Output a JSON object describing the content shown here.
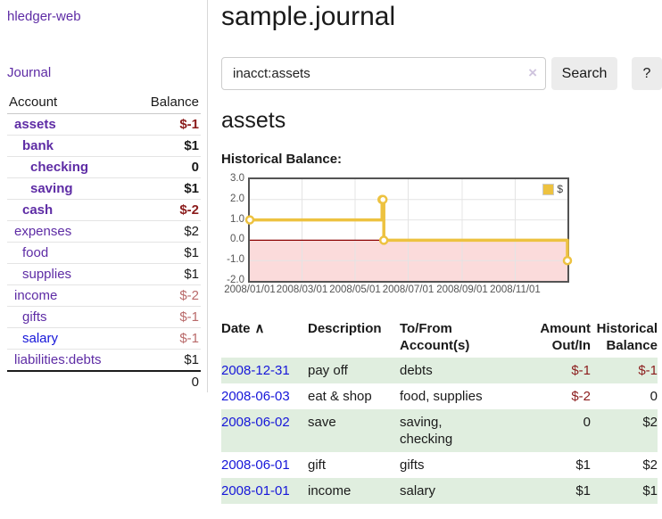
{
  "colors": {
    "link-purple": "#5e2ca5",
    "link-blue": "#1616d9",
    "neg-dark": "#8b1c1c",
    "neg-light": "#b96a6a",
    "row-green": "#e0eedf",
    "chart-gold": "#edc240",
    "chart-pink": "#fbdbdb",
    "chart-zero": "#8b0000",
    "chart-border": "#545454",
    "grid": "#e4e4e4"
  },
  "app": {
    "title": "hledger-web"
  },
  "sidebar": {
    "journal_link": "Journal",
    "account_header": "Account",
    "balance_header": "Balance",
    "rows": [
      {
        "name": "assets",
        "balance": "$-1"
      },
      {
        "name": "bank",
        "balance": "$1"
      },
      {
        "name": "checking",
        "balance": "0"
      },
      {
        "name": "saving",
        "balance": "$1"
      },
      {
        "name": "cash",
        "balance": "$-2"
      },
      {
        "name": "expenses",
        "balance": "$2"
      },
      {
        "name": "food",
        "balance": "$1"
      },
      {
        "name": "supplies",
        "balance": "$1"
      },
      {
        "name": "income",
        "balance": "$-2"
      },
      {
        "name": "gifts",
        "balance": "$-1"
      },
      {
        "name": "salary",
        "balance": "$-1"
      },
      {
        "name": "liabilities:debts",
        "balance": "$1"
      }
    ],
    "total": "0"
  },
  "header": {
    "title": "sample.journal"
  },
  "search": {
    "value": "inacct:assets",
    "clear_icon": "×",
    "button_label": "Search",
    "help_label": "?"
  },
  "account_page": {
    "title": "assets",
    "chart_label": "Historical Balance:"
  },
  "chart_data": {
    "type": "line",
    "title": "Historical Balance",
    "steps": true,
    "series": [
      {
        "name": "$",
        "color": "#edc240",
        "points": [
          {
            "date": "2008-01-01",
            "value": 1
          },
          {
            "date": "2008-06-01",
            "value": 2
          },
          {
            "date": "2008-06-02",
            "value": 2
          },
          {
            "date": "2008-06-03",
            "value": 0
          },
          {
            "date": "2008-12-31",
            "value": -1
          }
        ]
      }
    ],
    "x_range": [
      "2008-01-01",
      "2008-12-31"
    ],
    "x_ticks": [
      "2008/01/01",
      "2008/03/01",
      "2008/05/01",
      "2008/07/01",
      "2008/09/01",
      "2008/11/01"
    ],
    "y_range": [
      -2,
      3
    ],
    "y_ticks": [
      "3.0",
      "2.0",
      "1.0",
      "0.0",
      "-1.0",
      "-2.0"
    ],
    "legend": {
      "label": "$",
      "position": "top-right"
    },
    "grid": true
  },
  "register": {
    "columns": {
      "date": "Date",
      "description": "Description",
      "accounts": "To/From\nAccount(s)",
      "amount": "Amount\nOut/In",
      "balance": "Historical\nBalance"
    },
    "sort_icon": "∧",
    "rows": [
      {
        "date": "2008-12-31",
        "description": "pay off",
        "accounts": "debts",
        "amount": "$-1",
        "balance": "$-1"
      },
      {
        "date": "2008-06-03",
        "description": "eat & shop",
        "accounts": "food, supplies",
        "amount": "$-2",
        "balance": "0"
      },
      {
        "date": "2008-06-02",
        "description": "save",
        "accounts": "saving,\nchecking",
        "amount": "0",
        "balance": "$2"
      },
      {
        "date": "2008-06-01",
        "description": "gift",
        "accounts": "gifts",
        "amount": "$1",
        "balance": "$2"
      },
      {
        "date": "2008-01-01",
        "description": "income",
        "accounts": "salary",
        "amount": "$1",
        "balance": "$1"
      }
    ]
  }
}
